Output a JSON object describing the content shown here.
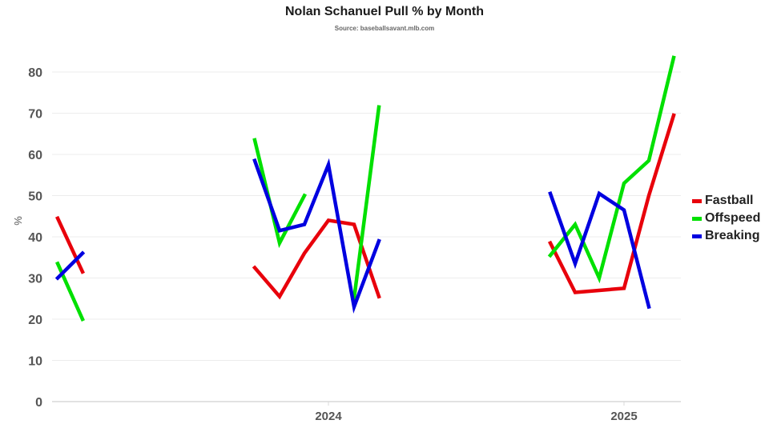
{
  "chart_data": {
    "type": "line",
    "title": "Nolan Schanuel Pull % by Month",
    "subtitle": "Source: baseballsavant.mlb.com",
    "xlabel": "",
    "ylabel": "%",
    "ylim": [
      0,
      85
    ],
    "yticks": [
      0,
      10,
      20,
      30,
      40,
      50,
      60,
      70,
      80
    ],
    "xticks": [
      {
        "label": "2024",
        "x": 410
      },
      {
        "label": "2025",
        "x": 779
      }
    ],
    "grid": true,
    "legend_position": "right",
    "series": [
      {
        "name": "Fastball",
        "color": "#e8000b",
        "segments": [
          [
            {
              "x": 72,
              "y": 44.5
            },
            {
              "x": 103,
              "y": 31.5
            }
          ],
          [
            {
              "x": 318,
              "y": 32.5
            },
            {
              "x": 349,
              "y": 25.5
            },
            {
              "x": 380,
              "y": 36
            },
            {
              "x": 410,
              "y": 44
            },
            {
              "x": 442,
              "y": 43
            },
            {
              "x": 473,
              "y": 25.5
            }
          ],
          [
            {
              "x": 687,
              "y": 38.5
            },
            {
              "x": 718,
              "y": 26.5
            },
            {
              "x": 748,
              "y": 27
            },
            {
              "x": 779,
              "y": 27.5
            },
            {
              "x": 810,
              "y": 50
            },
            {
              "x": 841,
              "y": 69.5
            }
          ]
        ]
      },
      {
        "name": "Offspeed",
        "color": "#00e000",
        "segments": [
          [
            {
              "x": 72,
              "y": 33.5
            },
            {
              "x": 103,
              "y": 20
            }
          ],
          [
            {
              "x": 318,
              "y": 63.5
            },
            {
              "x": 349,
              "y": 38.5
            },
            {
              "x": 380,
              "y": 50
            }
          ],
          [
            {
              "x": 442,
              "y": 25
            },
            {
              "x": 473,
              "y": 71.5
            }
          ],
          [
            {
              "x": 687,
              "y": 35.5
            },
            {
              "x": 718,
              "y": 43
            },
            {
              "x": 748,
              "y": 30
            },
            {
              "x": 779,
              "y": 53
            },
            {
              "x": 810,
              "y": 58.5
            },
            {
              "x": 841,
              "y": 83.5
            }
          ]
        ]
      },
      {
        "name": "Breaking",
        "color": "#0000e0",
        "segments": [
          [
            {
              "x": 72,
              "y": 30
            },
            {
              "x": 103,
              "y": 36
            }
          ],
          [
            {
              "x": 318,
              "y": 58.5
            },
            {
              "x": 349,
              "y": 41.5
            },
            {
              "x": 380,
              "y": 43
            },
            {
              "x": 410,
              "y": 57.5
            },
            {
              "x": 442,
              "y": 23
            },
            {
              "x": 473,
              "y": 39
            }
          ],
          [
            {
              "x": 687,
              "y": 50.5
            },
            {
              "x": 718,
              "y": 33.5
            },
            {
              "x": 748,
              "y": 50.5
            },
            {
              "x": 779,
              "y": 46.5
            },
            {
              "x": 810,
              "y": 23
            }
          ]
        ]
      }
    ]
  },
  "legend": [
    {
      "label": "Fastball",
      "color": "#e8000b"
    },
    {
      "label": "Offspeed",
      "color": "#00e000"
    },
    {
      "label": "Breaking",
      "color": "#0000e0"
    }
  ]
}
